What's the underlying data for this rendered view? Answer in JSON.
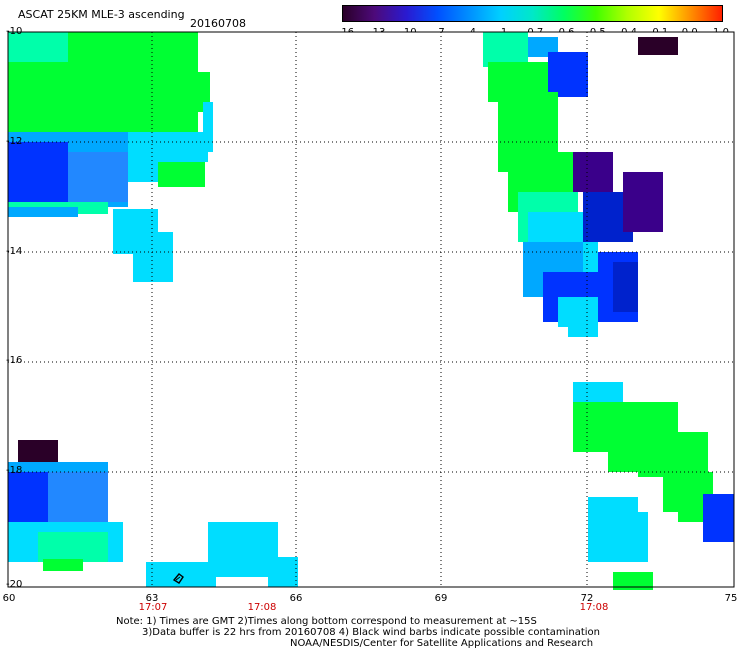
{
  "header": {
    "title": "ASCAT 25KM MLE-3 ascending",
    "date": "20160708"
  },
  "colorbar": {
    "tick_labels": [
      "-16",
      "-13",
      "-10",
      "-7",
      "-4",
      "-1",
      "-0.7",
      "-0.6",
      "-0.5",
      "-0.4",
      "-0.1",
      "0.0",
      "1.0"
    ],
    "colors": [
      "#2a0028",
      "#4d0a7a",
      "#2a1ad0",
      "#0050ff",
      "#0090ff",
      "#00d0ff",
      "#00e8c8",
      "#00ff60",
      "#40ff00",
      "#b0ff00",
      "#ffff00",
      "#ff9000",
      "#ff2000"
    ]
  },
  "map": {
    "latitude_labels": [
      "-10",
      "-12",
      "-14",
      "-16",
      "-18",
      "-20"
    ],
    "longitude_labels": [
      "60",
      "63",
      "66",
      "69",
      "72",
      "75"
    ],
    "time_labels": [
      "17:07",
      "17:08",
      "17:08"
    ],
    "color_green": "#00ff33",
    "color_cyan": "#00ddff",
    "color_blue": "#0033ff",
    "color_purple": "#3a008a",
    "color_dark": "#2a0028"
  },
  "notes": {
    "line1": "Note: 1) Times are GMT 2)Times along bottom correspond to measurement at ~15S",
    "line2": "3)Data buffer is 22 hrs from 20160708 4) Black wind barbs indicate possible contamination",
    "line3": "NOAA/NESDIS/Center for Satellite Applications and Research"
  }
}
